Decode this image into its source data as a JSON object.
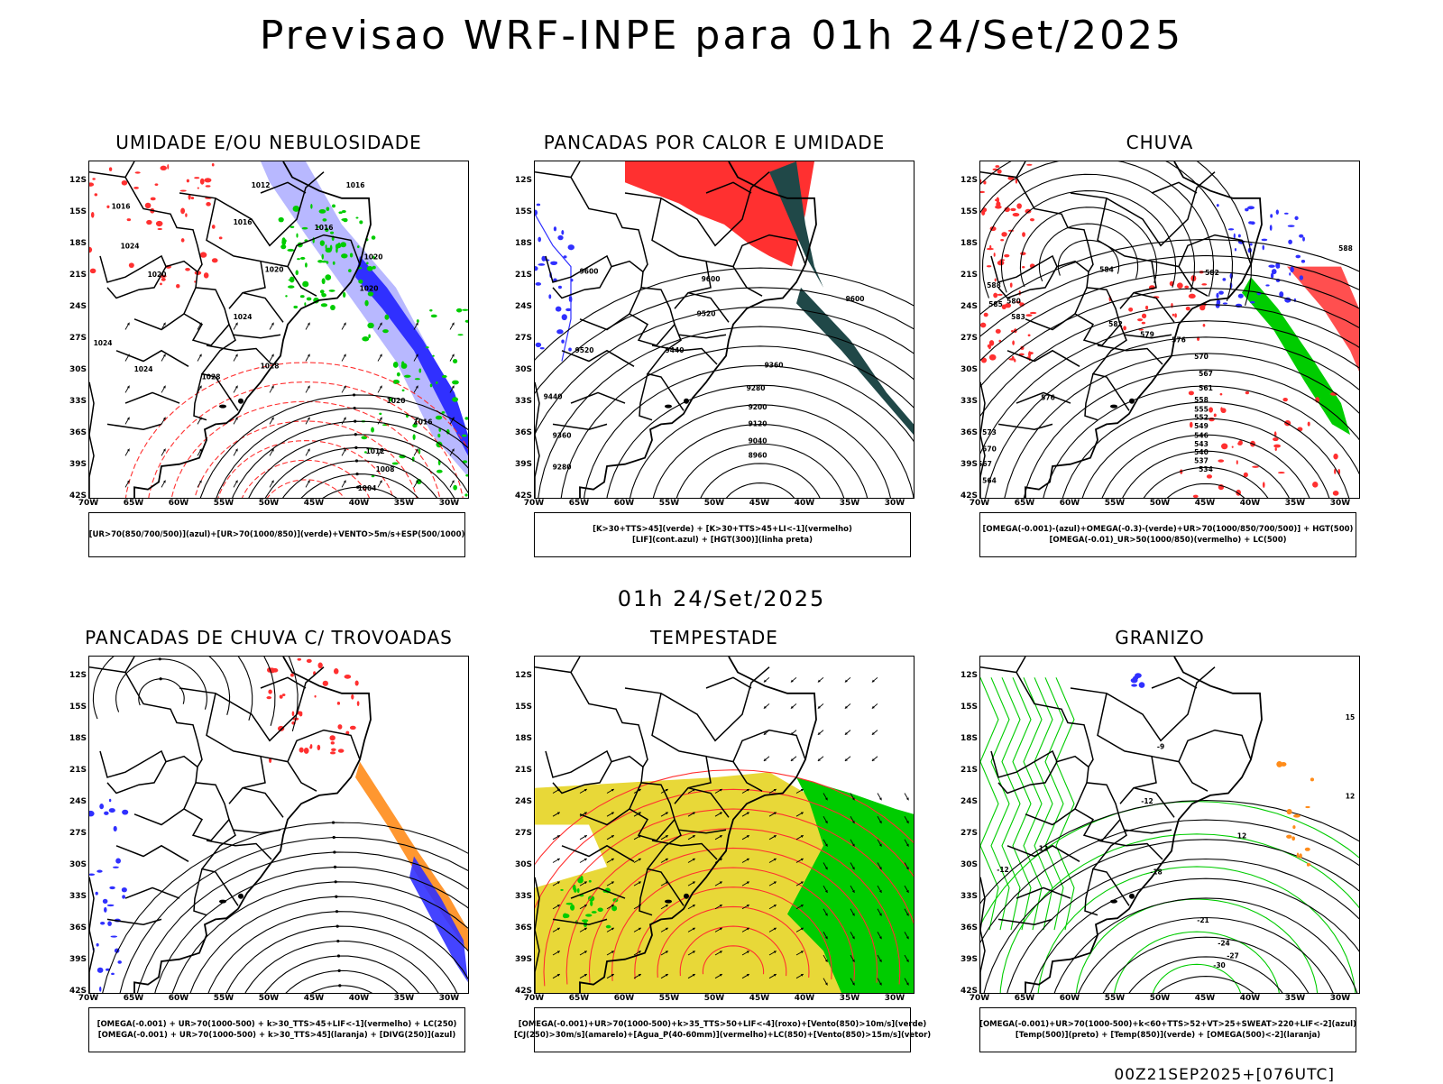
{
  "title": "Previsao WRF-INPE  para 01h 24/Set/2025",
  "subtitle": "01h 24/Set/2025",
  "footer": "00Z21SEP2025+[076UTC]",
  "axes": {
    "lat_labels": [
      "12S",
      "15S",
      "18S",
      "21S",
      "24S",
      "27S",
      "30S",
      "33S",
      "36S",
      "39S",
      "42S"
    ],
    "lon_labels": [
      "70W",
      "65W",
      "60W",
      "55W",
      "50W",
      "45W",
      "40W",
      "35W",
      "30W"
    ]
  },
  "colors": {
    "blue": "#3030ff",
    "green": "#00cc00",
    "red": "#ff3030",
    "yellow": "#e8d838",
    "orange": "#ff8c1a",
    "teal": "#204848",
    "lightblue": "#b8b8ff",
    "purple": "#b000b0"
  },
  "panels": [
    {
      "id": "umidade",
      "title": "UMIDADE E/OU NEBULOSIDADE",
      "legend": [
        "[UR>70(850/700/500)](azul)+[UR>70(1000/850)](verde)+VENTO>5m/s+ESP(500/1000)"
      ],
      "labels": [
        {
          "t": "1016",
          "lon": -66.5,
          "lat": -14.5
        },
        {
          "t": "1012",
          "lon": -51,
          "lat": -12.5
        },
        {
          "t": "1016",
          "lon": -40.5,
          "lat": -12.5
        },
        {
          "t": "1016",
          "lon": -53,
          "lat": -16
        },
        {
          "t": "1016",
          "lon": -44,
          "lat": -16.5
        },
        {
          "t": "1024",
          "lon": -65.5,
          "lat": -18.3
        },
        {
          "t": "1020",
          "lon": -62.5,
          "lat": -21
        },
        {
          "t": "1020",
          "lon": -49.5,
          "lat": -20.5
        },
        {
          "t": "1020",
          "lon": -38.5,
          "lat": -19.3
        },
        {
          "t": "1020",
          "lon": -39,
          "lat": -22.3
        },
        {
          "t": "1024",
          "lon": -53,
          "lat": -25
        },
        {
          "t": "1024",
          "lon": -68.5,
          "lat": -27.5
        },
        {
          "t": "1024",
          "lon": -64,
          "lat": -30
        },
        {
          "t": "1028",
          "lon": -56.5,
          "lat": -30.7
        },
        {
          "t": "1028",
          "lon": -50,
          "lat": -29.7
        },
        {
          "t": "1020",
          "lon": -36,
          "lat": -33
        },
        {
          "t": "1016",
          "lon": -33,
          "lat": -35
        },
        {
          "t": "1012",
          "lon": -38.3,
          "lat": -37.8
        },
        {
          "t": "1008",
          "lon": -37.2,
          "lat": -39.5
        },
        {
          "t": "1004",
          "lon": -39.2,
          "lat": -41.3
        }
      ]
    },
    {
      "id": "pancadas_calor",
      "title": "PANCADAS POR CALOR E UMIDADE",
      "legend": [
        "[K>30+TTS>45](verde) + [K>30+TTS>45+LI<-1](vermelho)",
        "[LIF](cont.azul) + [HGT(300)](linha preta)"
      ],
      "labels": [
        {
          "t": "9600",
          "lon": -64,
          "lat": -20.7
        },
        {
          "t": "9600",
          "lon": -50.5,
          "lat": -21.4
        },
        {
          "t": "9600",
          "lon": -34.5,
          "lat": -23.3
        },
        {
          "t": "9520",
          "lon": -51,
          "lat": -24.7
        },
        {
          "t": "9520",
          "lon": -64.5,
          "lat": -28.2
        },
        {
          "t": "9440",
          "lon": -54.5,
          "lat": -28.2
        },
        {
          "t": "9440",
          "lon": -68,
          "lat": -32.6
        },
        {
          "t": "9360",
          "lon": -43.5,
          "lat": -29.6
        },
        {
          "t": "9360",
          "lon": -67,
          "lat": -36.3
        },
        {
          "t": "9280",
          "lon": -45.5,
          "lat": -31.8
        },
        {
          "t": "9280",
          "lon": -67,
          "lat": -39.3
        },
        {
          "t": "9200",
          "lon": -45.3,
          "lat": -33.6
        },
        {
          "t": "9120",
          "lon": -45.3,
          "lat": -35.2
        },
        {
          "t": "9040",
          "lon": -45.3,
          "lat": -36.8
        },
        {
          "t": "8960",
          "lon": -45.3,
          "lat": -38.2
        }
      ]
    },
    {
      "id": "chuva",
      "title": "CHUVA",
      "legend": [
        "[OMEGA(-0.001)-(azul)+OMEGA(-0.3)-(verde)+UR>70(1000/850/700/500)] + HGT(500)",
        "[OMEGA(-0.01)_UR>50(1000/850)(vermelho) + LC(500)"
      ],
      "labels": [
        {
          "t": "580",
          "lon": -66.3,
          "lat": -23.5
        },
        {
          "t": "585",
          "lon": -68.3,
          "lat": -23.8
        },
        {
          "t": "588",
          "lon": -68.5,
          "lat": -22
        },
        {
          "t": "584",
          "lon": -56,
          "lat": -20.5
        },
        {
          "t": "582",
          "lon": -44.3,
          "lat": -20.8
        },
        {
          "t": "583",
          "lon": -65.8,
          "lat": -25
        },
        {
          "t": "582",
          "lon": -55,
          "lat": -25.7
        },
        {
          "t": "579",
          "lon": -51.5,
          "lat": -26.7
        },
        {
          "t": "576",
          "lon": -48,
          "lat": -27.2
        },
        {
          "t": "570",
          "lon": -45.5,
          "lat": -28.8
        },
        {
          "t": "567",
          "lon": -45,
          "lat": -30.4
        },
        {
          "t": "561",
          "lon": -45,
          "lat": -31.8
        },
        {
          "t": "558",
          "lon": -45.5,
          "lat": -32.9
        },
        {
          "t": "555",
          "lon": -45.5,
          "lat": -33.8
        },
        {
          "t": "552",
          "lon": -45.5,
          "lat": -34.6
        },
        {
          "t": "549",
          "lon": -45.5,
          "lat": -35.4
        },
        {
          "t": "546",
          "lon": -45.5,
          "lat": -36.3
        },
        {
          "t": "543",
          "lon": -45.5,
          "lat": -37.1
        },
        {
          "t": "540",
          "lon": -45.5,
          "lat": -37.9
        },
        {
          "t": "537",
          "lon": -45.5,
          "lat": -38.7
        },
        {
          "t": "534",
          "lon": -45,
          "lat": -39.5
        },
        {
          "t": "576",
          "lon": -62.5,
          "lat": -32.7
        },
        {
          "t": "573",
          "lon": -69,
          "lat": -36
        },
        {
          "t": "570",
          "lon": -69,
          "lat": -37.6
        },
        {
          "t": "567",
          "lon": -69.5,
          "lat": -39
        },
        {
          "t": "564",
          "lon": -69,
          "lat": -40.6
        },
        {
          "t": "588",
          "lon": -29.5,
          "lat": -18.5
        }
      ]
    },
    {
      "id": "trovoadas",
      "title": "PANCADAS DE CHUVA C/ TROVOADAS",
      "legend": [
        "[OMEGA(-0.001) + UR>70(1000-500) + k>30_TTS>45+LIF<-1](vermelho) + LC(250)",
        "[OMEGA(-0.001) + UR>70(1000-500) + k>30_TTS>45](laranja) + [DIVG(250)](azul)"
      ],
      "labels": []
    },
    {
      "id": "tempestade",
      "title": "TEMPESTADE",
      "legend": [
        "[OMEGA(-0.001)+UR>70(1000-500)+k>35_TTS>50+LIF<-4](roxo)+[Vento(850)>10m/s](verde)",
        "[CJ(250)>30m/s](amarelo)+[Agua_P(40-60mm)](vermelho)+LC(850)+[Vento(850)>15m/s](vetor)"
      ],
      "labels": []
    },
    {
      "id": "granizo",
      "title": "GRANIZO",
      "legend": [
        "[OMEGA(-0.001)+UR>70(1000-500)+k<60+TTS>52+VT>25+SWEAT>220+LIF<-2](azul)",
        "[Temp(500)](preto) + [Temp(850)](verde) + [OMEGA(500)<-2](laranja)"
      ],
      "labels": [
        {
          "t": "-9",
          "lon": -50,
          "lat": -18.8
        },
        {
          "t": "-12",
          "lon": -51.5,
          "lat": -24
        },
        {
          "t": "-12",
          "lon": -67.5,
          "lat": -30.5
        },
        {
          "t": "12",
          "lon": -63,
          "lat": -28.5
        },
        {
          "t": "12",
          "lon": -41,
          "lat": -27.3
        },
        {
          "t": "12",
          "lon": -29,
          "lat": -23.5
        },
        {
          "t": "15",
          "lon": -29,
          "lat": -16
        },
        {
          "t": "-18",
          "lon": -50.5,
          "lat": -30.7
        },
        {
          "t": "-21",
          "lon": -45.3,
          "lat": -35.3
        },
        {
          "t": "-24",
          "lon": -43,
          "lat": -37.5
        },
        {
          "t": "-27",
          "lon": -42,
          "lat": -38.7
        },
        {
          "t": "-30",
          "lon": -43.5,
          "lat": -39.6
        }
      ]
    }
  ]
}
